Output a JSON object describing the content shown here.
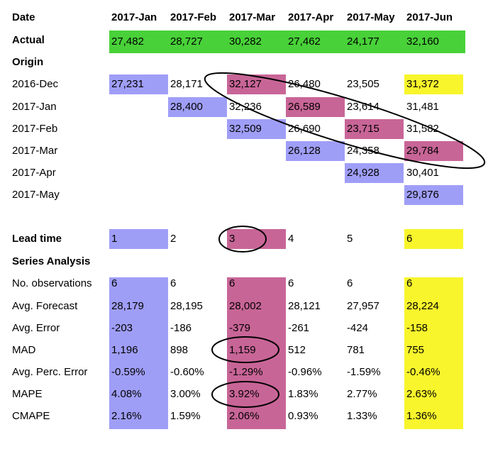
{
  "header_label": "Date",
  "months": [
    "2017-Jan",
    "2017-Feb",
    "2017-Mar",
    "2017-Apr",
    "2017-May",
    "2017-Jun"
  ],
  "actual": {
    "label": "Actual",
    "values": [
      "27,482",
      "28,727",
      "30,282",
      "27,462",
      "24,177",
      "32,160"
    ]
  },
  "origin_label": "Origin",
  "origins": [
    {
      "label": "2016-Dec",
      "values": [
        "27,231",
        "28,171",
        "32,127",
        "26,480",
        "23,505",
        "31,372"
      ]
    },
    {
      "label": "2017-Jan",
      "values": [
        "",
        "28,400",
        "32,236",
        "26,589",
        "23,614",
        "31,481"
      ]
    },
    {
      "label": "2017-Feb",
      "values": [
        "",
        "",
        "32,509",
        "26,690",
        "23,715",
        "31,582"
      ]
    },
    {
      "label": "2017-Mar",
      "values": [
        "",
        "",
        "",
        "26,128",
        "24,358",
        "29,784"
      ]
    },
    {
      "label": "2017-Apr",
      "values": [
        "",
        "",
        "",
        "",
        "24,928",
        "30,401"
      ]
    },
    {
      "label": "2017-May",
      "values": [
        "",
        "",
        "",
        "",
        "",
        "29,876"
      ]
    }
  ],
  "lead_time": {
    "label": "Lead time",
    "values": [
      "1",
      "2",
      "3",
      "4",
      "5",
      "6"
    ]
  },
  "series_analysis_label": "Series Analysis",
  "stats": [
    {
      "label": "No. observations",
      "values": [
        "6",
        "6",
        "6",
        "6",
        "6",
        "6"
      ]
    },
    {
      "label": "Avg. Forecast",
      "values": [
        "28,179",
        "28,195",
        "28,002",
        "28,121",
        "27,957",
        "28,224"
      ]
    },
    {
      "label": "Avg. Error",
      "values": [
        "-203",
        "-186",
        "-379",
        "-261",
        "-424",
        "-158"
      ]
    },
    {
      "label": "MAD",
      "values": [
        "1,196",
        "898",
        "1,159",
        "512",
        "781",
        "755"
      ]
    },
    {
      "label": "Avg. Perc. Error",
      "values": [
        "-0.59%",
        "-0.60%",
        "-1.29%",
        "-0.96%",
        "-1.59%",
        "-0.46%"
      ]
    },
    {
      "label": "MAPE",
      "values": [
        "4.08%",
        "3.00%",
        "3.92%",
        "1.83%",
        "2.77%",
        "2.63%"
      ]
    },
    {
      "label": "CMAPE",
      "values": [
        "2.16%",
        "1.59%",
        "2.06%",
        "0.93%",
        "1.33%",
        "1.36%"
      ]
    }
  ],
  "colors": {
    "actual": "#48d138",
    "lead1": "#9f9ef7",
    "lead3": "#c86597",
    "lead6": "#f8f52c",
    "annotation": "#000000"
  }
}
